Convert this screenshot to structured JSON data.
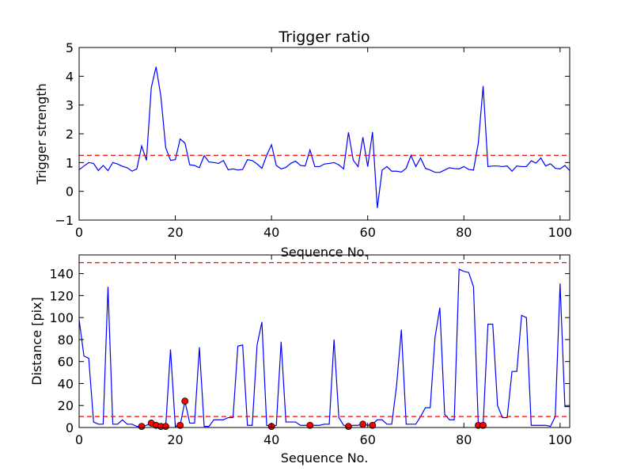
{
  "chart_data": [
    {
      "type": "line",
      "title": "Trigger ratio",
      "xlabel": "Sequence No.",
      "ylabel": "Trigger strength",
      "xlim": [
        0,
        102
      ],
      "ylim": [
        -1,
        5
      ],
      "xticks": [
        0,
        20,
        40,
        60,
        80,
        100
      ],
      "yticks": [
        -1,
        0,
        1,
        2,
        3,
        4,
        5
      ],
      "grid": false,
      "colors": {
        "series": "#0000ff",
        "threshold": "#ff0000"
      },
      "series": [
        {
          "x": [
            0,
            1,
            2,
            3,
            4,
            5,
            6,
            7,
            8,
            9,
            10,
            11,
            12,
            13,
            14,
            15,
            16,
            17,
            18,
            19,
            20,
            21,
            22,
            23,
            24,
            25,
            26,
            27,
            28,
            29,
            30,
            31,
            32,
            33,
            34,
            35,
            36,
            37,
            38,
            39,
            40,
            41,
            42,
            43,
            44,
            45,
            46,
            47,
            48,
            49,
            50,
            51,
            52,
            53,
            54,
            55,
            56,
            57,
            58,
            59,
            60,
            61,
            62,
            63,
            64,
            65,
            66,
            67,
            68,
            69,
            70,
            71,
            72,
            73,
            74,
            75,
            76,
            77,
            78,
            79,
            80,
            81,
            82,
            83,
            84,
            85,
            86,
            87,
            88,
            89,
            90,
            91,
            92,
            93,
            94,
            95,
            96,
            97,
            98,
            99,
            100,
            101,
            102
          ],
          "values": [
            0.75,
            0.88,
            1.0,
            0.97,
            0.72,
            0.9,
            0.72,
            1.0,
            0.95,
            0.87,
            0.82,
            0.7,
            0.78,
            1.58,
            1.08,
            3.6,
            4.33,
            3.3,
            1.52,
            1.08,
            1.1,
            1.82,
            1.68,
            0.92,
            0.9,
            0.82,
            1.24,
            1.02,
            1.0,
            0.97,
            1.07,
            0.75,
            0.78,
            0.74,
            0.76,
            1.1,
            1.07,
            0.95,
            0.8,
            1.25,
            1.62,
            0.9,
            0.78,
            0.83,
            0.97,
            1.05,
            0.9,
            0.88,
            1.44,
            0.86,
            0.86,
            0.95,
            0.97,
            1.0,
            0.92,
            0.78,
            2.05,
            1.08,
            0.86,
            1.88,
            0.86,
            2.06,
            -0.58,
            0.74,
            0.86,
            0.7,
            0.7,
            0.67,
            0.8,
            1.25,
            0.86,
            1.16,
            0.8,
            0.74,
            0.66,
            0.66,
            0.74,
            0.82,
            0.79,
            0.78,
            0.86,
            0.76,
            0.74,
            1.68,
            3.66,
            0.86,
            0.88,
            0.88,
            0.86,
            0.88,
            0.7,
            0.88,
            0.86,
            0.86,
            1.06,
            0.98,
            1.16,
            0.88,
            0.96,
            0.8,
            0.78,
            0.9,
            0.72
          ]
        }
      ],
      "threshold": 1.25
    },
    {
      "type": "line",
      "title": "",
      "xlabel": "Sequence No.",
      "ylabel": "Distance [pix]",
      "xlim": [
        0,
        102
      ],
      "ylim": [
        0,
        157
      ],
      "xticks": [
        0,
        20,
        40,
        60,
        80,
        100
      ],
      "yticks": [
        0,
        20,
        40,
        60,
        80,
        100,
        120,
        140
      ],
      "grid": false,
      "colors": {
        "series": "#0000ff",
        "threshold": "#ff0000",
        "markers": "#ff0000"
      },
      "series": [
        {
          "x": [
            0,
            1,
            2,
            3,
            4,
            5,
            6,
            7,
            8,
            9,
            10,
            11,
            12,
            13,
            14,
            15,
            16,
            17,
            18,
            19,
            20,
            21,
            22,
            23,
            24,
            25,
            26,
            27,
            28,
            29,
            30,
            31,
            32,
            33,
            34,
            35,
            36,
            37,
            38,
            39,
            40,
            41,
            42,
            43,
            44,
            45,
            46,
            47,
            48,
            49,
            50,
            51,
            52,
            53,
            54,
            55,
            56,
            57,
            58,
            59,
            60,
            61,
            62,
            63,
            64,
            65,
            66,
            67,
            68,
            69,
            70,
            71,
            72,
            73,
            74,
            75,
            76,
            77,
            78,
            79,
            80,
            81,
            82,
            83,
            84,
            85,
            86,
            87,
            88,
            89,
            90,
            91,
            92,
            93,
            94,
            95,
            96,
            97,
            98,
            99,
            100,
            101,
            102
          ],
          "values": [
            98,
            65,
            63,
            5,
            3,
            3,
            128,
            3,
            3,
            7,
            3,
            3,
            1,
            1,
            2,
            4,
            2,
            1,
            1,
            71,
            1,
            2,
            24,
            4,
            4,
            73,
            1,
            1,
            7,
            7,
            7,
            9,
            9,
            74,
            75,
            2,
            2,
            75,
            96,
            2,
            1,
            2,
            78,
            5,
            5,
            5,
            2,
            2,
            2,
            2,
            2,
            3,
            3,
            80,
            9,
            2,
            1,
            2,
            2,
            3,
            2,
            3,
            7,
            7,
            3,
            3,
            38,
            89,
            3,
            3,
            3,
            10,
            18,
            18,
            82,
            109,
            12,
            7,
            7,
            144,
            142,
            141,
            128,
            2,
            2,
            94,
            94,
            20,
            9,
            9,
            51,
            51,
            102,
            100,
            2,
            2,
            2,
            2,
            1,
            10,
            131,
            19,
            19
          ]
        }
      ],
      "markers": {
        "x": [
          13,
          15,
          16,
          17,
          18,
          21,
          22,
          40,
          48,
          56,
          59,
          61,
          83,
          84
        ],
        "y": [
          1,
          4,
          2,
          1,
          1,
          2,
          24,
          1,
          2,
          1,
          3,
          2,
          2,
          2
        ]
      },
      "thresholds": [
        10,
        150
      ]
    }
  ]
}
